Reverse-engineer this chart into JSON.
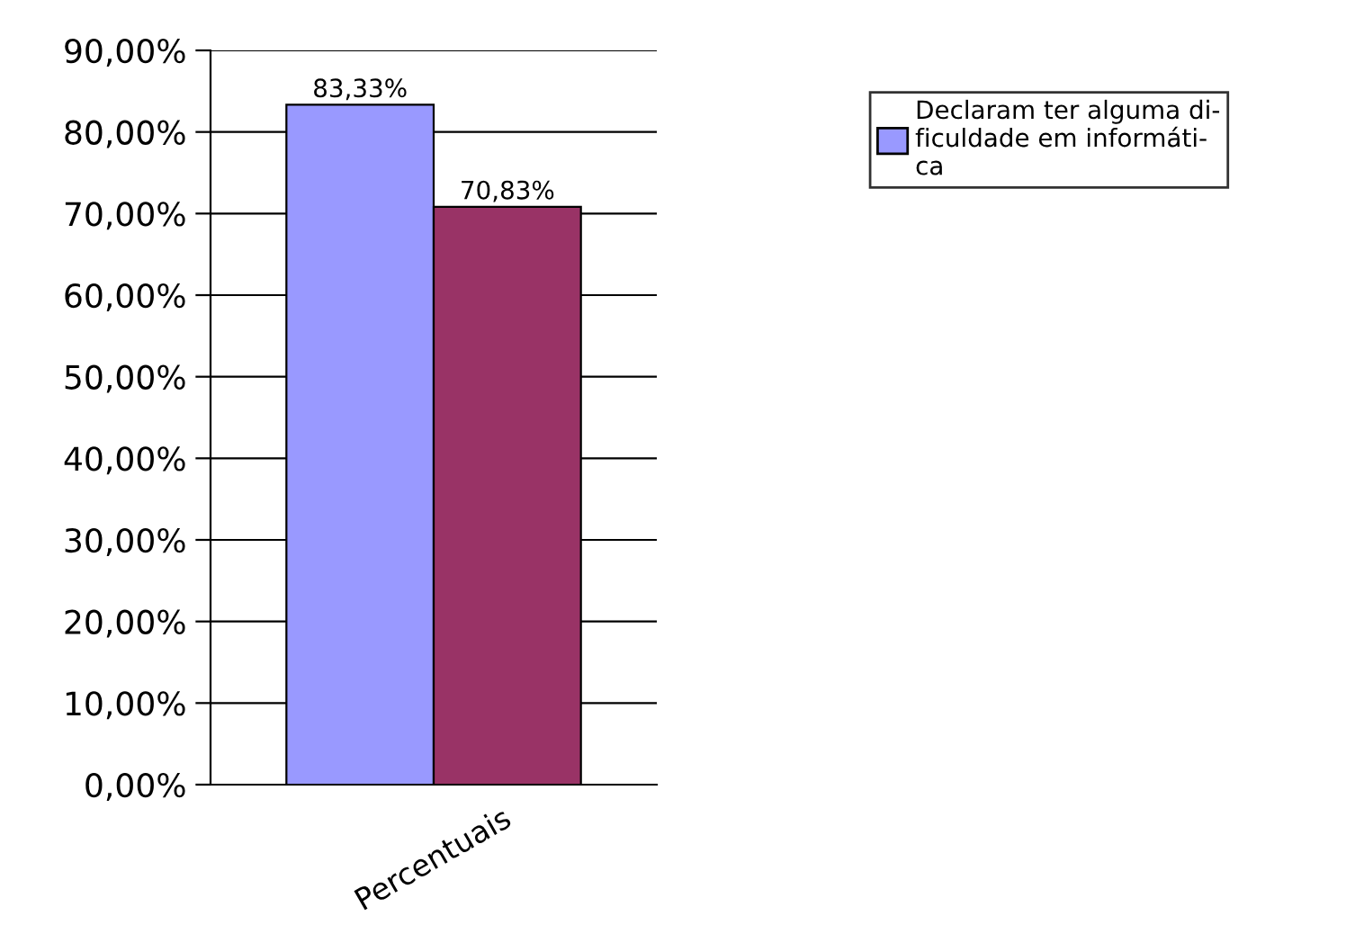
{
  "chart_data": {
    "type": "bar",
    "categories": [
      "Percentuais"
    ],
    "series": [
      {
        "name": "Declaram ter alguma di-\nficuldade em informáti-\nca",
        "color": "#9999ff",
        "values": [
          83.33
        ],
        "value_labels": [
          "83,33%"
        ]
      },
      {
        "color": "#993366",
        "values": [
          70.83
        ],
        "value_labels": [
          "70,83%"
        ]
      }
    ],
    "ylim": [
      0,
      90
    ],
    "yticks": [
      {
        "value": 0,
        "label": "0,00%"
      },
      {
        "value": 10,
        "label": "10,00%"
      },
      {
        "value": 20,
        "label": "20,00%"
      },
      {
        "value": 30,
        "label": "30,00%"
      },
      {
        "value": 40,
        "label": "40,00%"
      },
      {
        "value": 50,
        "label": "50,00%"
      },
      {
        "value": 60,
        "label": "60,00%"
      },
      {
        "value": 70,
        "label": "70,00%"
      },
      {
        "value": 80,
        "label": "80,00%"
      },
      {
        "value": 90,
        "label": "90,00%"
      }
    ],
    "grid": "y",
    "legend": "top right"
  }
}
